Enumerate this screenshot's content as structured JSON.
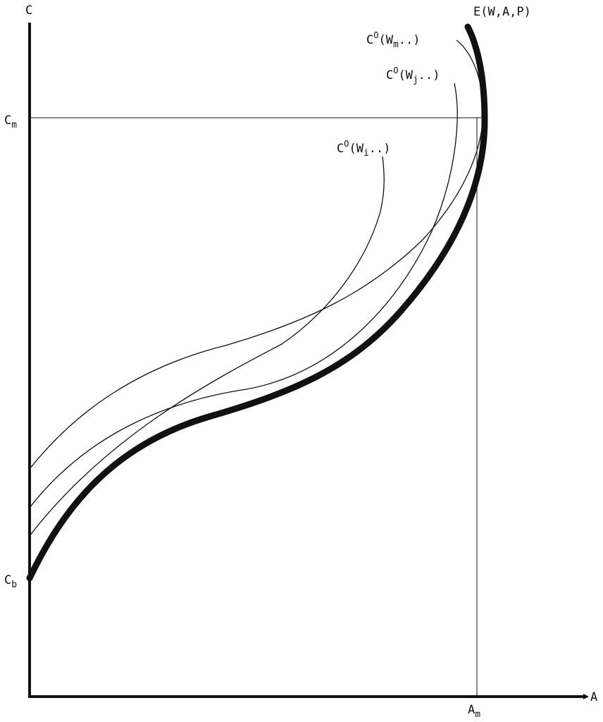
{
  "axes": {
    "y_label": "C",
    "x_label": "A",
    "y_ticks": [
      {
        "main": "C",
        "sub": "m"
      },
      {
        "main": "C",
        "sub": "b"
      }
    ],
    "x_ticks": [
      {
        "main": "A",
        "sub": "m"
      }
    ]
  },
  "curves": {
    "envelope": {
      "label": "E(W,A,P)"
    },
    "c_wm": {
      "main": "C",
      "sup": "O",
      "pre": "(W",
      "sub": "m",
      "post": "..)"
    },
    "c_wj": {
      "main": "C",
      "sup": "O",
      "pre": "(W",
      "sub": "j",
      "post": "..)"
    },
    "c_wi": {
      "main": "C",
      "sup": "O",
      "pre": "(W",
      "sub": "i",
      "post": "..)"
    }
  },
  "colors": {
    "ink": "#111111",
    "background": "#ffffff"
  }
}
